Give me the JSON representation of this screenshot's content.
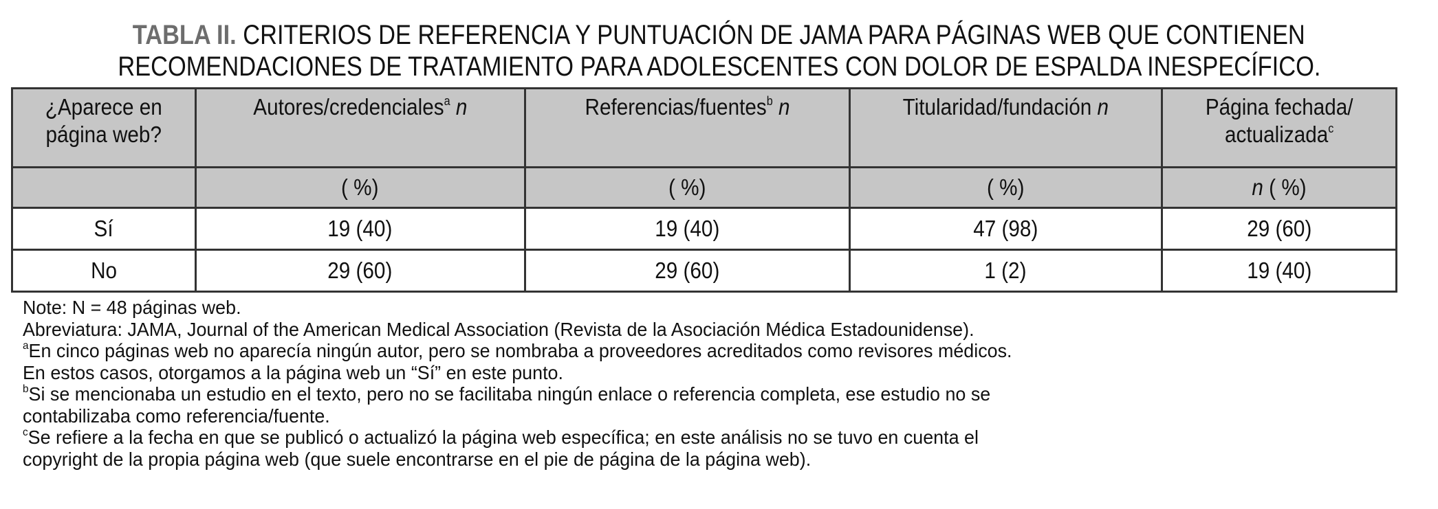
{
  "title": {
    "label": "TABLA II.",
    "line1": "CRITERIOS DE REFERENCIA Y PUNTUACIÓN DE JAMA PARA PÁGINAS WEB QUE CONTIENEN",
    "line2": "RECOMENDACIONES DE TRATAMIENTO PARA ADOLESCENTES CON DOLOR DE ESPALDA INESPECÍFICO."
  },
  "table": {
    "headers": [
      {
        "text": "¿Aparece en página web?",
        "sup": "",
        "n": ""
      },
      {
        "text": "Autores/credenciales",
        "sup": "a",
        "n": "n"
      },
      {
        "text": "Referencias/fuentes",
        "sup": "b",
        "n": "n"
      },
      {
        "text": "Titularidad/fundación",
        "sup": "",
        "n": "n"
      },
      {
        "text": "Página fechada/ actualizada",
        "sup": "c",
        "n": ""
      }
    ],
    "subheaders": [
      "",
      "( %)",
      "( %)",
      "( %)",
      "( %)"
    ],
    "subheader_last_n": "n",
    "rows": [
      [
        "Sí",
        "19 (40)",
        "19 (40)",
        "47 (98)",
        "29 (60)"
      ],
      [
        "No",
        "29 (60)",
        "29 (60)",
        "1 (2)",
        "19 (40)"
      ]
    ],
    "header_bg": "#c6c6c6"
  },
  "notes": {
    "n": "Note: N = 48 páginas web.",
    "abbr": "Abreviatura: JAMA, Journal of the American Medical Association (Revista de la Asociación Médica Estadounidense).",
    "a_mark": "a",
    "a1": "En cinco páginas web no aparecía ningún autor, pero se nombraba a proveedores acreditados como revisores médicos.",
    "a2": "En estos casos, otorgamos a la página web un “Sí” en este punto.",
    "b_mark": "b",
    "b1": "Si se mencionaba un estudio en el texto, pero no se facilitaba ningún enlace o referencia completa, ese estudio no se",
    "b2": "contabilizaba como referencia/fuente.",
    "c_mark": "c",
    "c1": "Se refiere a la fecha en que se publicó o actualizó la página web específica; en este análisis no se tuvo en cuenta el",
    "c2": "copyright de la propia página web (que suele encontrarse en el pie de página de la página web)."
  }
}
